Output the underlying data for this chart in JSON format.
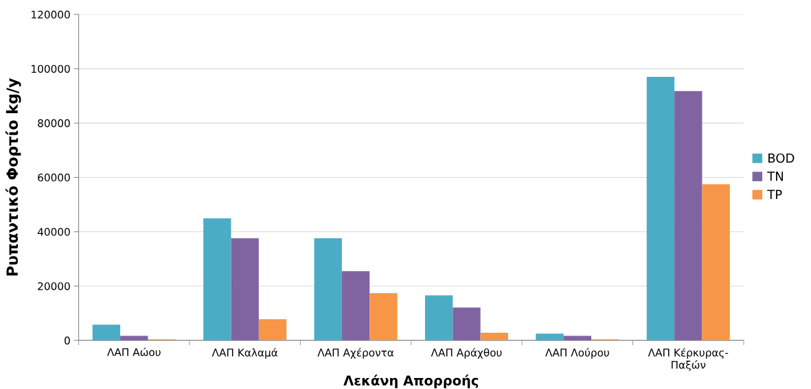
{
  "chart_data": {
    "type": "bar",
    "xlabel": "Λεκάνη Απορροής",
    "ylabel": "Ρυπαντικό Φορτίο kg/y",
    "categories": [
      "ΛΑΠ Αώου",
      "ΛΑΠ Καλαμά",
      "ΛΑΠ Αχέροντα",
      "ΛΑΠ Αράχθου",
      "ΛΑΠ Λούρου",
      "ΛΑΠ Κέρκυρας-Παξών"
    ],
    "series": [
      {
        "name": "BOD",
        "color": "#4bacc6",
        "values": [
          5800,
          44900,
          37600,
          16600,
          2500,
          97000
        ]
      },
      {
        "name": "TN",
        "color": "#8064a2",
        "values": [
          1700,
          37600,
          25500,
          12100,
          1700,
          91800
        ]
      },
      {
        "name": "TP",
        "color": "#f79646",
        "values": [
          400,
          7800,
          17400,
          2800,
          400,
          57500
        ]
      }
    ],
    "ylim": [
      0,
      120000
    ],
    "yticks": [
      0,
      20000,
      40000,
      60000,
      80000,
      100000,
      120000
    ],
    "grid": "y",
    "legend": "right"
  }
}
